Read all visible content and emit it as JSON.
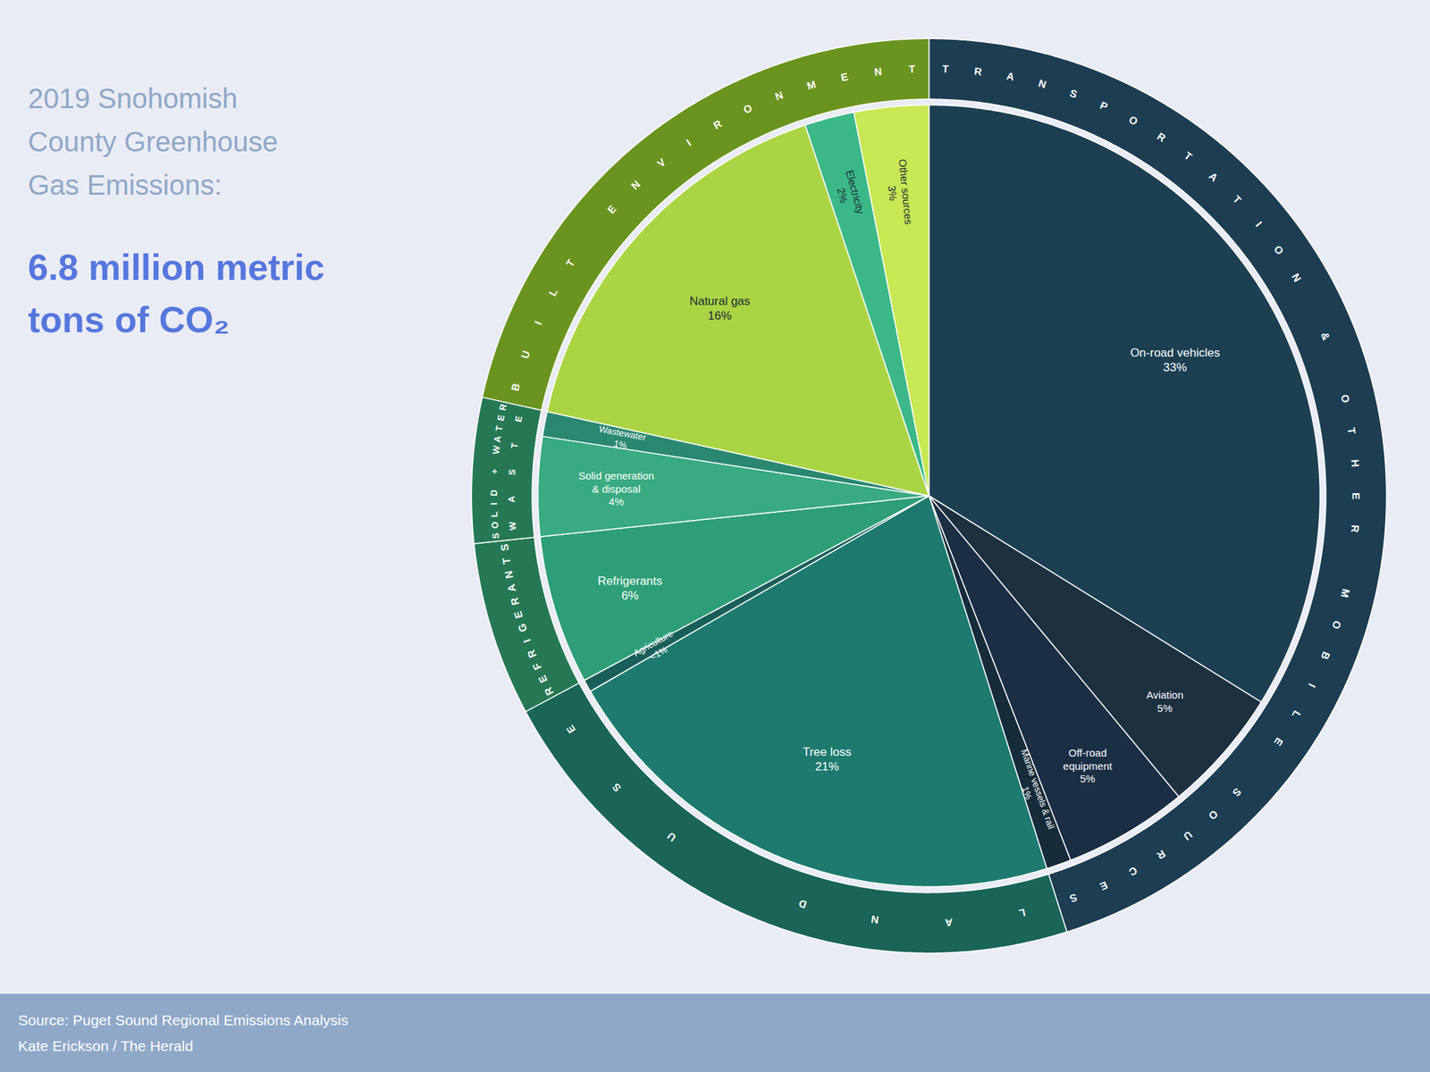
{
  "chart_data": {
    "type": "pie",
    "title": "2019 Snohomish\nCounty Greenhouse\nGas Emissions:",
    "subtitle": "6.8 million metric\ntons of CO₂",
    "caption": "Source: Puget Sound Regional Emissions Analysis\nKate Erickson / The Herald",
    "categories": [
      "On-road vehicles",
      "Aviation",
      "Off-road\nequipment",
      "Marine vessels & rail",
      "Tree loss",
      "Agriculture",
      "Refrigerants",
      "Solid generation\n& disposal",
      "Wastewater",
      "Natural gas",
      "Electricity",
      "Other sources"
    ],
    "values": [
      33,
      5,
      5,
      1,
      21,
      0.5,
      6,
      4,
      1,
      16,
      2,
      3
    ],
    "value_labels": [
      "33%",
      "5%",
      "5%",
      "1%",
      "21%",
      "<1%",
      "6%",
      "4%",
      "1%",
      "16%",
      "2%",
      "3%"
    ],
    "data_labels": true,
    "colors": [
      "#1c3f52",
      "#1c3040",
      "#1a2e44",
      "#162c3a",
      "#1e7a6e",
      "#1a5e5a",
      "#2e9e78",
      "#3aaa82",
      "#2a8870",
      "#aad444",
      "#3cb888",
      "#c8e855"
    ],
    "label_colors": [
      "white",
      "white",
      "white",
      "white",
      "white",
      "white",
      "white",
      "white",
      "white",
      "#1a2a3a",
      "#1a2a3a",
      "#1a2a3a"
    ],
    "slice_groups": [
      "TRANSPORTATION & OTHER MOBILE SOURCES",
      "TRANSPORTATION & OTHER MOBILE SOURCES",
      "TRANSPORTATION & OTHER MOBILE SOURCES",
      "TRANSPORTATION & OTHER MOBILE SOURCES",
      "LAND USE",
      "LAND USE",
      "REFRIGERANTS",
      "SOLID + WATER\nWASTE",
      "SOLID + WATER\nWASTE",
      "BUILT ENVIRONMENT",
      "BUILT ENVIRONMENT",
      "BUILT ENVIRONMENT"
    ],
    "groups": [
      {
        "name": "TRANSPORTATION & OTHER MOBILE SOURCES",
        "color": "#1c3d52"
      },
      {
        "name": "LAND USE",
        "color": "#1a6458"
      },
      {
        "name": "REFRIGERANTS",
        "color": "#267855"
      },
      {
        "name": "SOLID + WATER\nWASTE",
        "color": "#267855"
      },
      {
        "name": "BUILT ENVIRONMENT",
        "color": "#6a9420"
      }
    ],
    "background_color": "#eaecf5",
    "footer_color": "#8fa8c8",
    "title_color": "#8fa8c8",
    "subtitle_color": "#5577dd"
  }
}
